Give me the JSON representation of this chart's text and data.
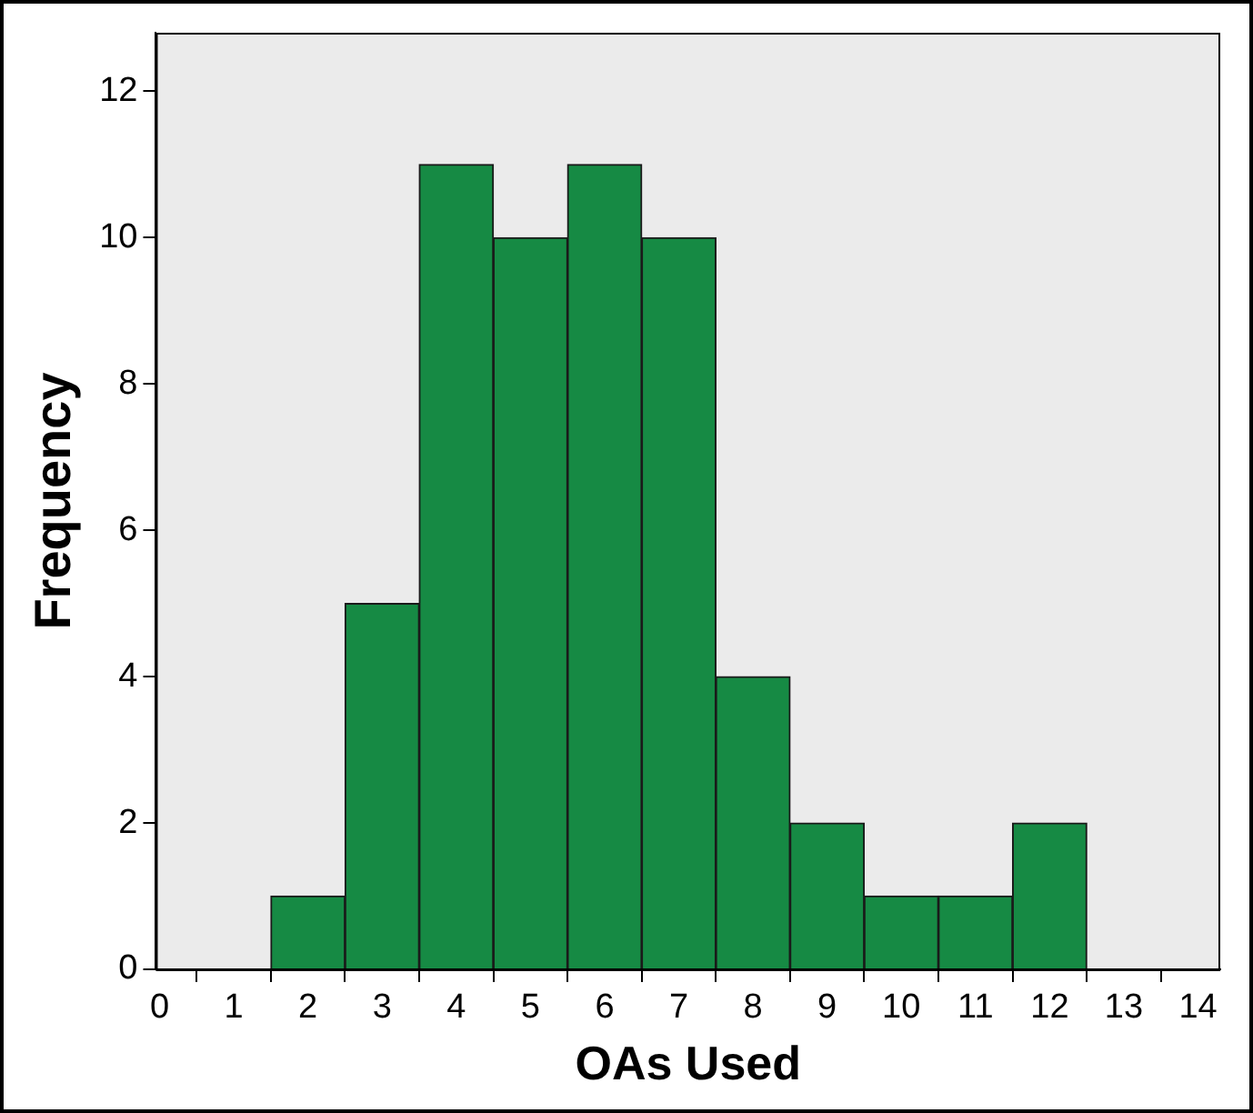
{
  "chart_data": {
    "type": "histogram",
    "xlabel": "OAs Used",
    "ylabel": "Frequency",
    "bins": [
      1.5,
      2.5,
      3.5,
      4.5,
      5.5,
      6.5,
      7.5,
      8.5,
      9.5,
      10.5,
      11.5,
      12.5
    ],
    "values": [
      1,
      5,
      11,
      10,
      11,
      10,
      4,
      2,
      1,
      1,
      2
    ],
    "color": "#168a44",
    "xlim": [
      -0.05,
      14.3
    ],
    "xticks": [
      0,
      1,
      2,
      3,
      4,
      5,
      6,
      7,
      8,
      9,
      10,
      11,
      12,
      13,
      14
    ],
    "ylim": [
      0,
      12.8
    ],
    "yticks": [
      0,
      2,
      4,
      6,
      8,
      10,
      12
    ],
    "grid": false,
    "legend": false
  }
}
